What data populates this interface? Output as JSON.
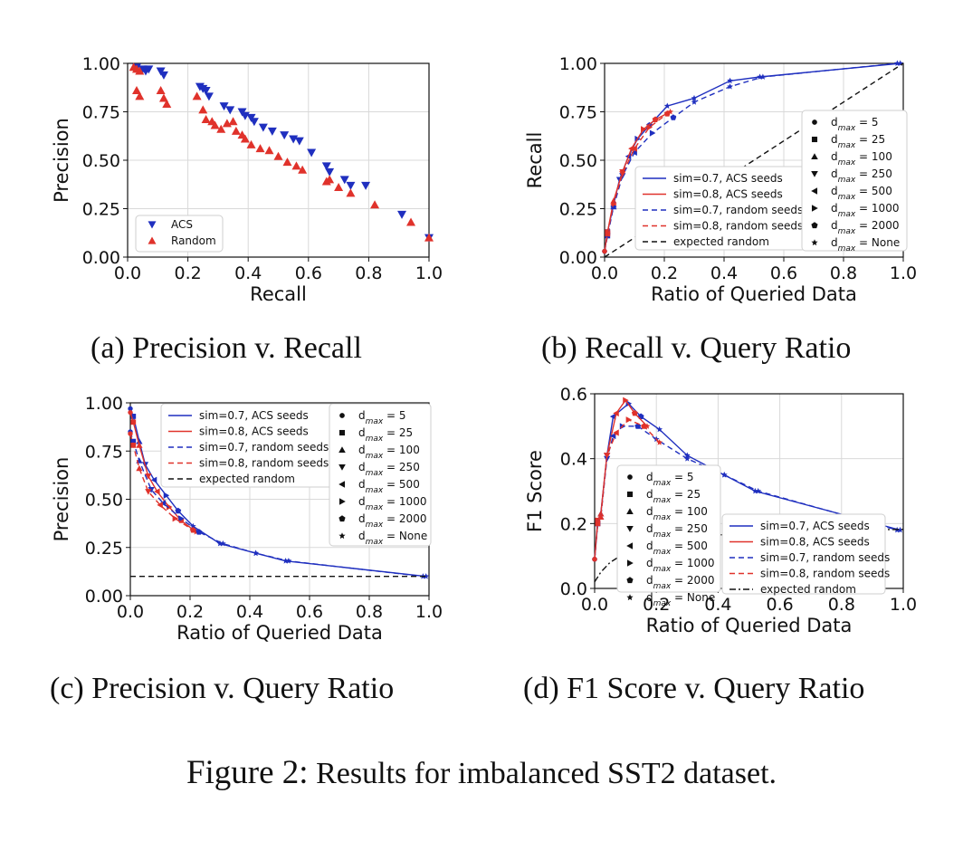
{
  "figure_caption": {
    "label": "Figure 2:",
    "text": "Results for imbalanced SST2 dataset."
  },
  "panels": [
    {
      "caption": "(a) Precision v. Recall"
    },
    {
      "caption": "(b) Recall v. Query Ratio"
    },
    {
      "caption": "(c) Precision v. Query Ratio"
    },
    {
      "caption": "(d) F1 Score v. Query Ratio"
    }
  ],
  "colors": {
    "acs": "#1f2fbf",
    "random": "#e0322b",
    "expected": "#111111",
    "grid": "#d9d9d9"
  },
  "chart_data": [
    {
      "type": "scatter",
      "xlabel": "Recall",
      "ylabel": "Precision",
      "xlim": [
        0,
        1
      ],
      "ylim": [
        0,
        1
      ],
      "xticks": [
        "0.0",
        "0.2",
        "0.4",
        "0.6",
        "0.8",
        "1.0"
      ],
      "yticks": [
        "0.00",
        "0.25",
        "0.50",
        "0.75",
        "1.00"
      ],
      "grid": true,
      "legend_position": "bottom-left",
      "series": [
        {
          "name": "ACS",
          "marker": "triangle-down",
          "color": "#1f2fbf",
          "points": [
            [
              0.03,
              0.98
            ],
            [
              0.05,
              0.97
            ],
            [
              0.07,
              0.97
            ],
            [
              0.06,
              0.96
            ],
            [
              0.11,
              0.96
            ],
            [
              0.12,
              0.94
            ],
            [
              0.24,
              0.88
            ],
            [
              0.25,
              0.87
            ],
            [
              0.26,
              0.86
            ],
            [
              0.27,
              0.83
            ],
            [
              0.32,
              0.78
            ],
            [
              0.34,
              0.76
            ],
            [
              0.38,
              0.75
            ],
            [
              0.39,
              0.73
            ],
            [
              0.41,
              0.72
            ],
            [
              0.42,
              0.7
            ],
            [
              0.45,
              0.67
            ],
            [
              0.48,
              0.65
            ],
            [
              0.52,
              0.63
            ],
            [
              0.55,
              0.61
            ],
            [
              0.57,
              0.6
            ],
            [
              0.61,
              0.54
            ],
            [
              0.66,
              0.47
            ],
            [
              0.67,
              0.44
            ],
            [
              0.72,
              0.4
            ],
            [
              0.74,
              0.37
            ],
            [
              0.79,
              0.37
            ],
            [
              0.91,
              0.22
            ],
            [
              1.0,
              0.1
            ]
          ]
        },
        {
          "name": "Random",
          "marker": "triangle-up",
          "color": "#e0322b",
          "points": [
            [
              0.02,
              0.98
            ],
            [
              0.03,
              0.97
            ],
            [
              0.04,
              0.96
            ],
            [
              0.03,
              0.86
            ],
            [
              0.04,
              0.83
            ],
            [
              0.11,
              0.86
            ],
            [
              0.12,
              0.82
            ],
            [
              0.13,
              0.79
            ],
            [
              0.23,
              0.83
            ],
            [
              0.25,
              0.76
            ],
            [
              0.26,
              0.71
            ],
            [
              0.28,
              0.7
            ],
            [
              0.29,
              0.68
            ],
            [
              0.31,
              0.66
            ],
            [
              0.33,
              0.69
            ],
            [
              0.35,
              0.7
            ],
            [
              0.36,
              0.65
            ],
            [
              0.38,
              0.63
            ],
            [
              0.39,
              0.61
            ],
            [
              0.41,
              0.58
            ],
            [
              0.44,
              0.56
            ],
            [
              0.47,
              0.55
            ],
            [
              0.5,
              0.52
            ],
            [
              0.53,
              0.49
            ],
            [
              0.56,
              0.47
            ],
            [
              0.58,
              0.45
            ],
            [
              0.66,
              0.39
            ],
            [
              0.67,
              0.4
            ],
            [
              0.7,
              0.36
            ],
            [
              0.74,
              0.33
            ],
            [
              0.82,
              0.27
            ],
            [
              0.94,
              0.18
            ],
            [
              1.0,
              0.1
            ]
          ]
        }
      ]
    },
    {
      "type": "line",
      "xlabel": "Ratio of Queried Data",
      "ylabel": "Recall",
      "xlim": [
        0,
        1
      ],
      "ylim": [
        0,
        1
      ],
      "xticks": [
        "0.0",
        "0.2",
        "0.4",
        "0.6",
        "0.8",
        "1.0"
      ],
      "yticks": [
        "0.00",
        "0.25",
        "0.50",
        "0.75",
        "1.00"
      ],
      "grid": true,
      "series": [
        {
          "name": "sim=0.7, ACS seeds",
          "style": "solid",
          "color": "#1f2fbf",
          "points": [
            [
              0,
              0.03
            ],
            [
              0.01,
              0.13
            ],
            [
              0.03,
              0.27
            ],
            [
              0.05,
              0.4
            ],
            [
              0.08,
              0.52
            ],
            [
              0.11,
              0.61
            ],
            [
              0.15,
              0.68
            ],
            [
              0.21,
              0.78
            ],
            [
              0.3,
              0.82
            ],
            [
              0.42,
              0.91
            ],
            [
              0.52,
              0.93
            ],
            [
              0.99,
              1.0
            ]
          ]
        },
        {
          "name": "sim=0.8, ACS seeds",
          "style": "solid",
          "color": "#e0322b",
          "points": [
            [
              0,
              0.03
            ],
            [
              0.01,
              0.13
            ],
            [
              0.03,
              0.29
            ],
            [
              0.06,
              0.44
            ],
            [
              0.09,
              0.56
            ],
            [
              0.13,
              0.66
            ],
            [
              0.17,
              0.71
            ],
            [
              0.22,
              0.75
            ]
          ]
        },
        {
          "name": "sim=0.7, random seeds",
          "style": "dashed",
          "color": "#1f2fbf",
          "points": [
            [
              0,
              0.03
            ],
            [
              0.01,
              0.11
            ],
            [
              0.03,
              0.26
            ],
            [
              0.06,
              0.42
            ],
            [
              0.1,
              0.54
            ],
            [
              0.16,
              0.64
            ],
            [
              0.23,
              0.72
            ],
            [
              0.3,
              0.8
            ],
            [
              0.42,
              0.88
            ],
            [
              0.53,
              0.93
            ],
            [
              0.98,
              1.0
            ]
          ]
        },
        {
          "name": "sim=0.8, random seeds",
          "style": "dashed",
          "color": "#e0322b",
          "points": [
            [
              0,
              0.03
            ],
            [
              0.01,
              0.12
            ],
            [
              0.03,
              0.28
            ],
            [
              0.06,
              0.43
            ],
            [
              0.1,
              0.56
            ],
            [
              0.15,
              0.67
            ],
            [
              0.21,
              0.74
            ]
          ]
        },
        {
          "name": "expected random",
          "style": "dashed",
          "color": "#111111",
          "points": [
            [
              0,
              0
            ],
            [
              1,
              1
            ]
          ]
        }
      ],
      "marker_legend": [
        "d_max = 5",
        "d_max = 25",
        "d_max = 100",
        "d_max = 250",
        "d_max = 500",
        "d_max = 1000",
        "d_max = 2000",
        "d_max = None"
      ]
    },
    {
      "type": "line",
      "xlabel": "Ratio of Queried Data",
      "ylabel": "Precision",
      "xlim": [
        0,
        1
      ],
      "ylim": [
        0,
        1
      ],
      "xticks": [
        "0.0",
        "0.2",
        "0.4",
        "0.6",
        "0.8",
        "1.0"
      ],
      "yticks": [
        "0.00",
        "0.25",
        "0.50",
        "0.75",
        "1.00"
      ],
      "grid": true,
      "series": [
        {
          "name": "sim=0.7, ACS seeds",
          "style": "solid",
          "color": "#1f2fbf",
          "points": [
            [
              0,
              0.97
            ],
            [
              0.01,
              0.93
            ],
            [
              0.03,
              0.8
            ],
            [
              0.05,
              0.68
            ],
            [
              0.08,
              0.6
            ],
            [
              0.12,
              0.52
            ],
            [
              0.16,
              0.44
            ],
            [
              0.21,
              0.36
            ],
            [
              0.3,
              0.27
            ],
            [
              0.42,
              0.22
            ],
            [
              0.52,
              0.18
            ],
            [
              0.99,
              0.1
            ]
          ]
        },
        {
          "name": "sim=0.8, ACS seeds",
          "style": "solid",
          "color": "#e0322b",
          "points": [
            [
              0,
              0.95
            ],
            [
              0.01,
              0.9
            ],
            [
              0.03,
              0.78
            ],
            [
              0.06,
              0.62
            ],
            [
              0.09,
              0.54
            ],
            [
              0.13,
              0.46
            ],
            [
              0.17,
              0.39
            ],
            [
              0.22,
              0.33
            ]
          ]
        },
        {
          "name": "sim=0.7, random seeds",
          "style": "dashed",
          "color": "#1f2fbf",
          "points": [
            [
              0,
              0.85
            ],
            [
              0.01,
              0.8
            ],
            [
              0.03,
              0.7
            ],
            [
              0.07,
              0.55
            ],
            [
              0.11,
              0.48
            ],
            [
              0.17,
              0.4
            ],
            [
              0.23,
              0.33
            ],
            [
              0.31,
              0.27
            ],
            [
              0.42,
              0.22
            ],
            [
              0.53,
              0.18
            ],
            [
              0.98,
              0.1
            ]
          ]
        },
        {
          "name": "sim=0.8, random seeds",
          "style": "dashed",
          "color": "#e0322b",
          "points": [
            [
              0,
              0.84
            ],
            [
              0.01,
              0.78
            ],
            [
              0.03,
              0.66
            ],
            [
              0.06,
              0.54
            ],
            [
              0.1,
              0.47
            ],
            [
              0.15,
              0.4
            ],
            [
              0.21,
              0.34
            ]
          ]
        },
        {
          "name": "expected random",
          "style": "dashed",
          "color": "#111111",
          "points": [
            [
              0,
              0.1
            ],
            [
              1,
              0.1
            ]
          ]
        }
      ],
      "marker_legend": [
        "d_max = 5",
        "d_max = 25",
        "d_max = 100",
        "d_max = 250",
        "d_max = 500",
        "d_max = 1000",
        "d_max = 2000",
        "d_max = None"
      ]
    },
    {
      "type": "line",
      "xlabel": "Ratio of Queried Data",
      "ylabel": "F1 Score",
      "xlim": [
        0,
        1
      ],
      "ylim": [
        0,
        0.6
      ],
      "xticks": [
        "0.0",
        "0.2",
        "0.4",
        "0.6",
        "0.8",
        "1.0"
      ],
      "yticks": [
        "0.0",
        "0.2",
        "0.4",
        "0.6"
      ],
      "grid": true,
      "series": [
        {
          "name": "sim=0.7, ACS seeds",
          "style": "solid",
          "color": "#1f2fbf",
          "points": [
            [
              0,
              0.09
            ],
            [
              0.01,
              0.2
            ],
            [
              0.02,
              0.23
            ],
            [
              0.04,
              0.41
            ],
            [
              0.06,
              0.53
            ],
            [
              0.11,
              0.57
            ],
            [
              0.15,
              0.53
            ],
            [
              0.21,
              0.49
            ],
            [
              0.3,
              0.41
            ],
            [
              0.42,
              0.35
            ],
            [
              0.52,
              0.3
            ],
            [
              0.99,
              0.18
            ]
          ]
        },
        {
          "name": "sim=0.8, ACS seeds",
          "style": "solid",
          "color": "#e0322b",
          "points": [
            [
              0,
              0.09
            ],
            [
              0.01,
              0.21
            ],
            [
              0.02,
              0.23
            ],
            [
              0.04,
              0.41
            ],
            [
              0.07,
              0.54
            ],
            [
              0.1,
              0.58
            ],
            [
              0.13,
              0.54
            ],
            [
              0.17,
              0.5
            ]
          ]
        },
        {
          "name": "sim=0.7, random seeds",
          "style": "dashed",
          "color": "#1f2fbf",
          "points": [
            [
              0,
              0.09
            ],
            [
              0.01,
              0.2
            ],
            [
              0.02,
              0.22
            ],
            [
              0.04,
              0.4
            ],
            [
              0.06,
              0.47
            ],
            [
              0.09,
              0.5
            ],
            [
              0.14,
              0.5
            ],
            [
              0.2,
              0.46
            ],
            [
              0.3,
              0.4
            ],
            [
              0.42,
              0.35
            ],
            [
              0.53,
              0.3
            ],
            [
              0.98,
              0.18
            ]
          ]
        },
        {
          "name": "sim=0.8, random seeds",
          "style": "dashed",
          "color": "#e0322b",
          "points": [
            [
              0,
              0.09
            ],
            [
              0.01,
              0.2
            ],
            [
              0.02,
              0.22
            ],
            [
              0.04,
              0.41
            ],
            [
              0.07,
              0.48
            ],
            [
              0.11,
              0.52
            ],
            [
              0.16,
              0.5
            ],
            [
              0.21,
              0.45
            ]
          ]
        },
        {
          "name": "expected random",
          "style": "dashdot",
          "color": "#111111",
          "points": [
            [
              0,
              0.02
            ],
            [
              0.02,
              0.05
            ],
            [
              0.05,
              0.08
            ],
            [
              0.1,
              0.11
            ],
            [
              0.2,
              0.14
            ],
            [
              0.3,
              0.155
            ],
            [
              0.4,
              0.165
            ],
            [
              0.5,
              0.17
            ],
            [
              0.6,
              0.175
            ],
            [
              0.7,
              0.178
            ],
            [
              0.8,
              0.18
            ],
            [
              0.9,
              0.181
            ],
            [
              1.0,
              0.182
            ]
          ]
        }
      ],
      "marker_legend": [
        "d_max = 5",
        "d_max = 25",
        "d_max = 100",
        "d_max = 250",
        "d_max = 500",
        "d_max = 1000",
        "d_max = 2000",
        "d_max = None"
      ]
    }
  ]
}
